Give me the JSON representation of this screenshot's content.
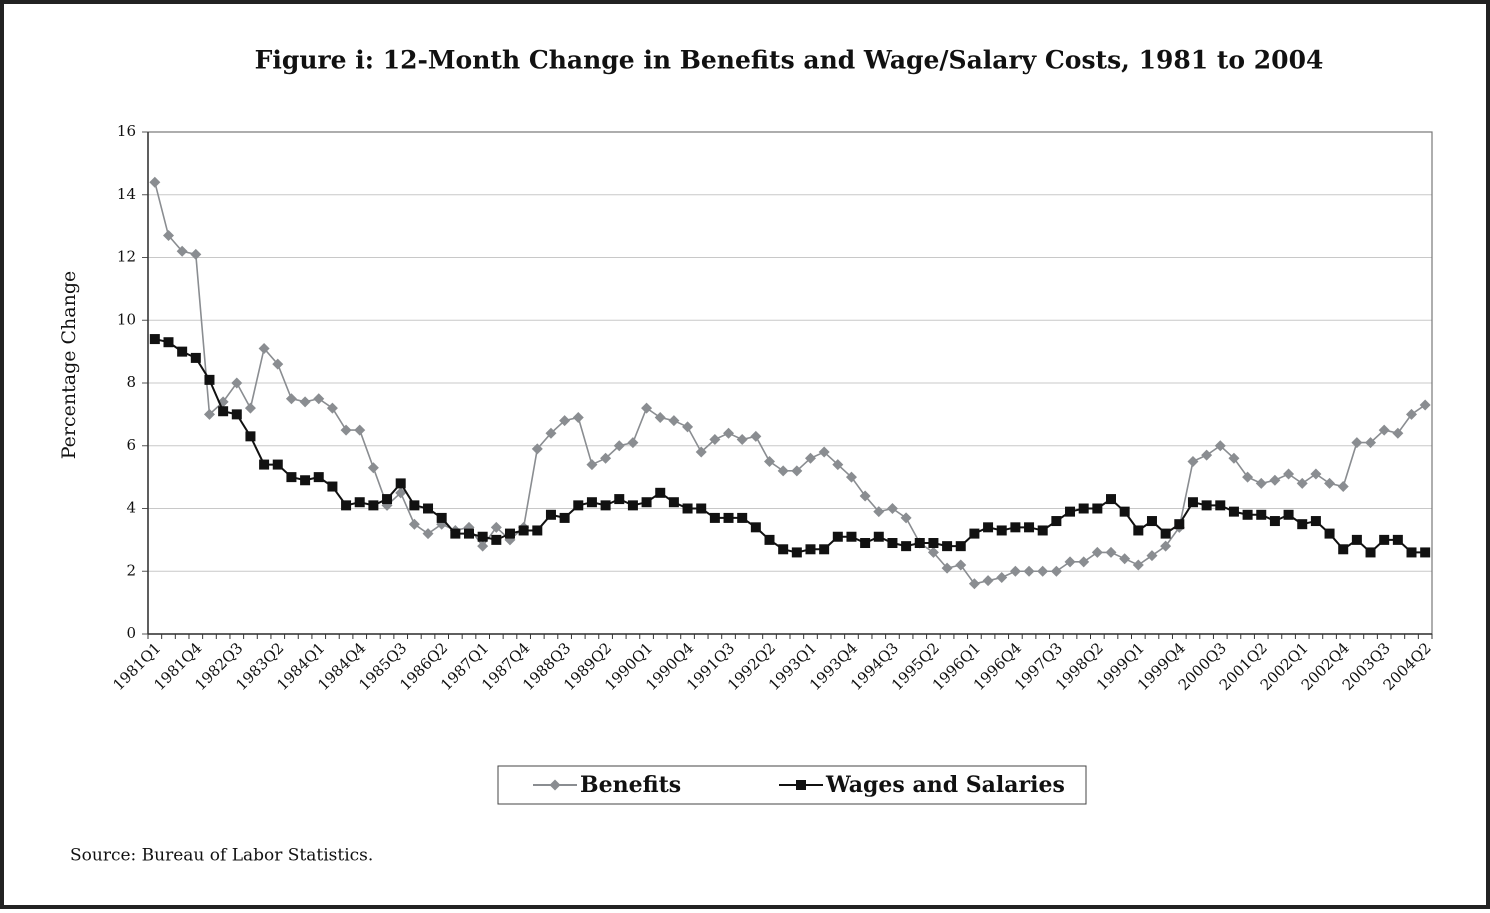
{
  "chart_data": {
    "type": "line",
    "title": "Figure i: 12-Month Change in Benefits and Wage/Salary Costs,  1981 to 2004",
    "y_label": "Percentage Change",
    "source": "Source: Bureau of Labor Statistics.",
    "categories": [
      "1981Q1",
      null,
      null,
      "1981Q4",
      null,
      null,
      "1982Q3",
      null,
      null,
      "1983Q2",
      null,
      null,
      "1984Q1",
      null,
      null,
      "1984Q4",
      null,
      null,
      "1985Q3",
      null,
      null,
      "1986Q2",
      null,
      null,
      "1987Q1",
      null,
      null,
      "1987Q4",
      null,
      null,
      "1988Q3",
      null,
      null,
      "1989Q2",
      null,
      null,
      "1990Q1",
      null,
      null,
      "1990Q4",
      null,
      null,
      "1991Q3",
      null,
      null,
      "1992Q2",
      null,
      null,
      "1993Q1",
      null,
      null,
      "1993Q4",
      null,
      null,
      "1994Q3",
      null,
      null,
      "1995Q2",
      null,
      null,
      "1996Q1",
      null,
      null,
      "1996Q4",
      null,
      null,
      "1997Q3",
      null,
      null,
      "1998Q2",
      null,
      null,
      "1999Q1",
      null,
      null,
      "1999Q4",
      null,
      null,
      "2000Q3",
      null,
      null,
      "2001Q2",
      null,
      null,
      "2002Q1",
      null,
      null,
      "2002Q4",
      null,
      null,
      "2003Q3",
      null,
      null,
      "2004Q2"
    ],
    "series": [
      {
        "name": "Benefits",
        "color": "#8a8d91",
        "marker": "diamond",
        "values": [
          14.4,
          12.7,
          12.2,
          12.1,
          7.0,
          7.4,
          8.0,
          7.2,
          9.1,
          8.6,
          7.5,
          7.4,
          7.5,
          7.2,
          6.5,
          6.5,
          5.3,
          4.1,
          4.5,
          3.5,
          3.2,
          3.5,
          3.3,
          3.4,
          2.8,
          3.4,
          3.0,
          3.4,
          5.9,
          6.4,
          6.8,
          6.9,
          5.4,
          5.6,
          6.0,
          6.1,
          7.2,
          6.9,
          6.8,
          6.6,
          5.8,
          6.2,
          6.4,
          6.2,
          6.3,
          5.5,
          5.2,
          5.2,
          5.6,
          5.8,
          5.4,
          5.0,
          4.4,
          3.9,
          4.0,
          3.7,
          2.9,
          2.6,
          2.1,
          2.2,
          1.6,
          1.7,
          1.8,
          2.0,
          2.0,
          2.0,
          2.0,
          2.3,
          2.3,
          2.6,
          2.6,
          2.4,
          2.2,
          2.5,
          2.8,
          3.4,
          5.5,
          5.7,
          6.0,
          5.6,
          5.0,
          4.8,
          4.9,
          5.1,
          4.8,
          5.1,
          4.8,
          4.7,
          6.1,
          6.1,
          6.5,
          6.4,
          7.0,
          7.3
        ]
      },
      {
        "name": "Wages and Salaries",
        "color": "#111111",
        "marker": "square",
        "values": [
          9.4,
          9.3,
          9.0,
          8.8,
          8.1,
          7.1,
          7.0,
          6.3,
          5.4,
          5.4,
          5.0,
          4.9,
          5.0,
          4.7,
          4.1,
          4.2,
          4.1,
          4.3,
          4.8,
          4.1,
          4.0,
          3.7,
          3.2,
          3.2,
          3.1,
          3.0,
          3.2,
          3.3,
          3.3,
          3.8,
          3.7,
          4.1,
          4.2,
          4.1,
          4.3,
          4.1,
          4.2,
          4.5,
          4.2,
          4.0,
          4.0,
          3.7,
          3.7,
          3.7,
          3.4,
          3.0,
          2.7,
          2.6,
          2.7,
          2.7,
          3.1,
          3.1,
          2.9,
          3.1,
          2.9,
          2.8,
          2.9,
          2.9,
          2.8,
          2.8,
          3.2,
          3.4,
          3.3,
          3.4,
          3.4,
          3.3,
          3.6,
          3.9,
          4.0,
          4.0,
          4.3,
          3.9,
          3.3,
          3.6,
          3.2,
          3.5,
          4.2,
          4.1,
          4.1,
          3.9,
          3.8,
          3.8,
          3.6,
          3.8,
          3.5,
          3.6,
          3.2,
          2.7,
          3.0,
          2.6,
          3.0,
          3.0,
          2.6,
          2.6
        ]
      }
    ],
    "ylim": [
      0,
      16
    ],
    "yticks": [
      0,
      2,
      4,
      6,
      8,
      10,
      12,
      14,
      16
    ],
    "grid": true,
    "legend": "bottom"
  }
}
